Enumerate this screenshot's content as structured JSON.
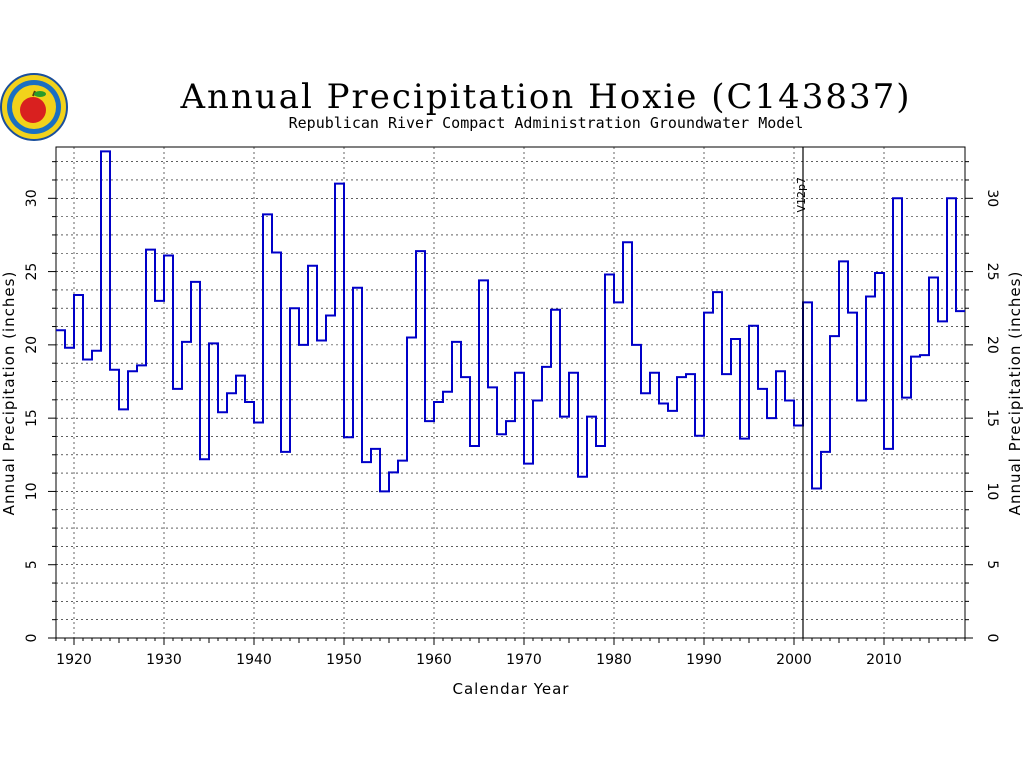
{
  "chart_data": {
    "type": "line",
    "step": true,
    "title": "Annual Precipitation Hoxie (C143837)",
    "subtitle": "Republican River Compact Administration Groundwater Model",
    "xlabel": "Calendar Year",
    "ylabel": "Annual Precipitation (inches)",
    "xlim": [
      1918,
      2019
    ],
    "ylim": [
      0,
      33.5
    ],
    "x_ticks": [
      "1920",
      "1930",
      "1940",
      "1950",
      "1960",
      "1970",
      "1980",
      "1990",
      "2000",
      "2010"
    ],
    "y_ticks": [
      "0",
      "5",
      "10",
      "15",
      "20",
      "25",
      "30"
    ],
    "grid": true,
    "annotation": {
      "label": "V12p7",
      "x": 2001
    },
    "line_color": "#0000c8",
    "series": [
      {
        "x": [
          1918,
          1919,
          1920,
          1921,
          1922,
          1923,
          1924,
          1925,
          1926,
          1927,
          1928,
          1929,
          1930,
          1931,
          1932,
          1933,
          1934,
          1935,
          1936,
          1937,
          1938,
          1939,
          1940,
          1941,
          1942,
          1943,
          1944,
          1945,
          1946,
          1947,
          1948,
          1949,
          1950,
          1951,
          1952,
          1953,
          1954,
          1955,
          1956,
          1957,
          1958,
          1959,
          1960,
          1961,
          1962,
          1963,
          1964,
          1965,
          1966,
          1967,
          1968,
          1969,
          1970,
          1971,
          1972,
          1973,
          1974,
          1975,
          1976,
          1977,
          1978,
          1979,
          1980,
          1981,
          1982,
          1983,
          1984,
          1985,
          1986,
          1987,
          1988,
          1989,
          1990,
          1991,
          1992,
          1993,
          1994,
          1995,
          1996,
          1997,
          1998,
          1999,
          2000,
          2001,
          2002,
          2003,
          2004,
          2005,
          2006,
          2007,
          2008,
          2009,
          2010,
          2011,
          2012,
          2013,
          2014,
          2015,
          2016,
          2017,
          2018
        ],
        "values": [
          21.0,
          19.8,
          23.4,
          19.0,
          19.6,
          33.2,
          18.3,
          15.6,
          18.2,
          18.6,
          26.5,
          23.0,
          26.1,
          17.0,
          20.2,
          24.3,
          12.2,
          20.1,
          15.4,
          16.7,
          17.9,
          16.1,
          14.7,
          28.9,
          26.3,
          12.7,
          22.5,
          20.0,
          25.4,
          20.3,
          22.0,
          31.0,
          13.7,
          23.9,
          12.0,
          12.9,
          10.0,
          11.3,
          12.1,
          20.5,
          26.4,
          14.8,
          16.1,
          16.8,
          20.2,
          17.8,
          13.1,
          24.4,
          17.1,
          13.9,
          14.8,
          18.1,
          11.9,
          16.2,
          18.5,
          22.4,
          15.1,
          18.1,
          11.0,
          15.1,
          13.1,
          24.8,
          22.9,
          27.0,
          20.0,
          16.7,
          18.1,
          16.0,
          15.5,
          17.8,
          18.0,
          13.8,
          22.2,
          23.6,
          18.0,
          20.4,
          13.6,
          21.3,
          17.0,
          15.0,
          18.2,
          16.2,
          14.5,
          22.9,
          10.2,
          12.7,
          20.6,
          25.7,
          22.2,
          16.2,
          23.3,
          24.9,
          12.9,
          30.0,
          16.4,
          19.2,
          19.3,
          24.6,
          21.6,
          30.0,
          22.3
        ]
      }
    ]
  },
  "logo": {
    "name": "kansas-seal",
    "colors": [
      "#1a6fc2",
      "#f2d21b",
      "#d9201f",
      "#2a9b2a"
    ]
  }
}
